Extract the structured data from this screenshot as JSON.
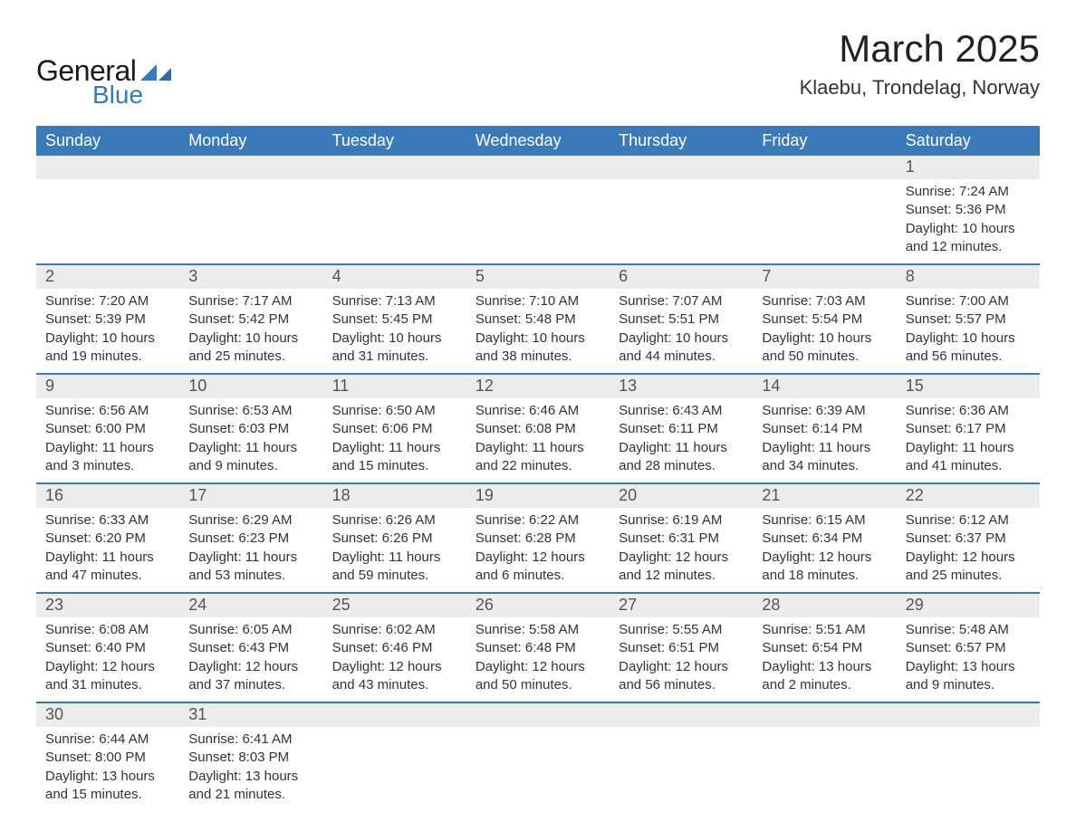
{
  "logo": {
    "word1": "General",
    "word2": "Blue",
    "brand_color": "#3a7ab8"
  },
  "title": "March 2025",
  "location": "Klaebu, Trondelag, Norway",
  "colors": {
    "header_bg": "#3a7ab8",
    "header_text": "#ffffff",
    "daynum_bg": "#ececec",
    "row_divider": "#3a7ab8",
    "body_text": "#333333",
    "page_bg": "#ffffff"
  },
  "font": {
    "family": "Arial",
    "th_size": 18,
    "daynum_size": 18,
    "body_size": 15,
    "title_size": 42,
    "location_size": 22
  },
  "weekdays": [
    "Sunday",
    "Monday",
    "Tuesday",
    "Wednesday",
    "Thursday",
    "Friday",
    "Saturday"
  ],
  "weeks": [
    [
      null,
      null,
      null,
      null,
      null,
      null,
      {
        "n": "1",
        "sunrise": "Sunrise: 7:24 AM",
        "sunset": "Sunset: 5:36 PM",
        "day1": "Daylight: 10 hours",
        "day2": "and 12 minutes."
      }
    ],
    [
      {
        "n": "2",
        "sunrise": "Sunrise: 7:20 AM",
        "sunset": "Sunset: 5:39 PM",
        "day1": "Daylight: 10 hours",
        "day2": "and 19 minutes."
      },
      {
        "n": "3",
        "sunrise": "Sunrise: 7:17 AM",
        "sunset": "Sunset: 5:42 PM",
        "day1": "Daylight: 10 hours",
        "day2": "and 25 minutes."
      },
      {
        "n": "4",
        "sunrise": "Sunrise: 7:13 AM",
        "sunset": "Sunset: 5:45 PM",
        "day1": "Daylight: 10 hours",
        "day2": "and 31 minutes."
      },
      {
        "n": "5",
        "sunrise": "Sunrise: 7:10 AM",
        "sunset": "Sunset: 5:48 PM",
        "day1": "Daylight: 10 hours",
        "day2": "and 38 minutes."
      },
      {
        "n": "6",
        "sunrise": "Sunrise: 7:07 AM",
        "sunset": "Sunset: 5:51 PM",
        "day1": "Daylight: 10 hours",
        "day2": "and 44 minutes."
      },
      {
        "n": "7",
        "sunrise": "Sunrise: 7:03 AM",
        "sunset": "Sunset: 5:54 PM",
        "day1": "Daylight: 10 hours",
        "day2": "and 50 minutes."
      },
      {
        "n": "8",
        "sunrise": "Sunrise: 7:00 AM",
        "sunset": "Sunset: 5:57 PM",
        "day1": "Daylight: 10 hours",
        "day2": "and 56 minutes."
      }
    ],
    [
      {
        "n": "9",
        "sunrise": "Sunrise: 6:56 AM",
        "sunset": "Sunset: 6:00 PM",
        "day1": "Daylight: 11 hours",
        "day2": "and 3 minutes."
      },
      {
        "n": "10",
        "sunrise": "Sunrise: 6:53 AM",
        "sunset": "Sunset: 6:03 PM",
        "day1": "Daylight: 11 hours",
        "day2": "and 9 minutes."
      },
      {
        "n": "11",
        "sunrise": "Sunrise: 6:50 AM",
        "sunset": "Sunset: 6:06 PM",
        "day1": "Daylight: 11 hours",
        "day2": "and 15 minutes."
      },
      {
        "n": "12",
        "sunrise": "Sunrise: 6:46 AM",
        "sunset": "Sunset: 6:08 PM",
        "day1": "Daylight: 11 hours",
        "day2": "and 22 minutes."
      },
      {
        "n": "13",
        "sunrise": "Sunrise: 6:43 AM",
        "sunset": "Sunset: 6:11 PM",
        "day1": "Daylight: 11 hours",
        "day2": "and 28 minutes."
      },
      {
        "n": "14",
        "sunrise": "Sunrise: 6:39 AM",
        "sunset": "Sunset: 6:14 PM",
        "day1": "Daylight: 11 hours",
        "day2": "and 34 minutes."
      },
      {
        "n": "15",
        "sunrise": "Sunrise: 6:36 AM",
        "sunset": "Sunset: 6:17 PM",
        "day1": "Daylight: 11 hours",
        "day2": "and 41 minutes."
      }
    ],
    [
      {
        "n": "16",
        "sunrise": "Sunrise: 6:33 AM",
        "sunset": "Sunset: 6:20 PM",
        "day1": "Daylight: 11 hours",
        "day2": "and 47 minutes."
      },
      {
        "n": "17",
        "sunrise": "Sunrise: 6:29 AM",
        "sunset": "Sunset: 6:23 PM",
        "day1": "Daylight: 11 hours",
        "day2": "and 53 minutes."
      },
      {
        "n": "18",
        "sunrise": "Sunrise: 6:26 AM",
        "sunset": "Sunset: 6:26 PM",
        "day1": "Daylight: 11 hours",
        "day2": "and 59 minutes."
      },
      {
        "n": "19",
        "sunrise": "Sunrise: 6:22 AM",
        "sunset": "Sunset: 6:28 PM",
        "day1": "Daylight: 12 hours",
        "day2": "and 6 minutes."
      },
      {
        "n": "20",
        "sunrise": "Sunrise: 6:19 AM",
        "sunset": "Sunset: 6:31 PM",
        "day1": "Daylight: 12 hours",
        "day2": "and 12 minutes."
      },
      {
        "n": "21",
        "sunrise": "Sunrise: 6:15 AM",
        "sunset": "Sunset: 6:34 PM",
        "day1": "Daylight: 12 hours",
        "day2": "and 18 minutes."
      },
      {
        "n": "22",
        "sunrise": "Sunrise: 6:12 AM",
        "sunset": "Sunset: 6:37 PM",
        "day1": "Daylight: 12 hours",
        "day2": "and 25 minutes."
      }
    ],
    [
      {
        "n": "23",
        "sunrise": "Sunrise: 6:08 AM",
        "sunset": "Sunset: 6:40 PM",
        "day1": "Daylight: 12 hours",
        "day2": "and 31 minutes."
      },
      {
        "n": "24",
        "sunrise": "Sunrise: 6:05 AM",
        "sunset": "Sunset: 6:43 PM",
        "day1": "Daylight: 12 hours",
        "day2": "and 37 minutes."
      },
      {
        "n": "25",
        "sunrise": "Sunrise: 6:02 AM",
        "sunset": "Sunset: 6:46 PM",
        "day1": "Daylight: 12 hours",
        "day2": "and 43 minutes."
      },
      {
        "n": "26",
        "sunrise": "Sunrise: 5:58 AM",
        "sunset": "Sunset: 6:48 PM",
        "day1": "Daylight: 12 hours",
        "day2": "and 50 minutes."
      },
      {
        "n": "27",
        "sunrise": "Sunrise: 5:55 AM",
        "sunset": "Sunset: 6:51 PM",
        "day1": "Daylight: 12 hours",
        "day2": "and 56 minutes."
      },
      {
        "n": "28",
        "sunrise": "Sunrise: 5:51 AM",
        "sunset": "Sunset: 6:54 PM",
        "day1": "Daylight: 13 hours",
        "day2": "and 2 minutes."
      },
      {
        "n": "29",
        "sunrise": "Sunrise: 5:48 AM",
        "sunset": "Sunset: 6:57 PM",
        "day1": "Daylight: 13 hours",
        "day2": "and 9 minutes."
      }
    ],
    [
      {
        "n": "30",
        "sunrise": "Sunrise: 6:44 AM",
        "sunset": "Sunset: 8:00 PM",
        "day1": "Daylight: 13 hours",
        "day2": "and 15 minutes."
      },
      {
        "n": "31",
        "sunrise": "Sunrise: 6:41 AM",
        "sunset": "Sunset: 8:03 PM",
        "day1": "Daylight: 13 hours",
        "day2": "and 21 minutes."
      },
      null,
      null,
      null,
      null,
      null
    ]
  ]
}
